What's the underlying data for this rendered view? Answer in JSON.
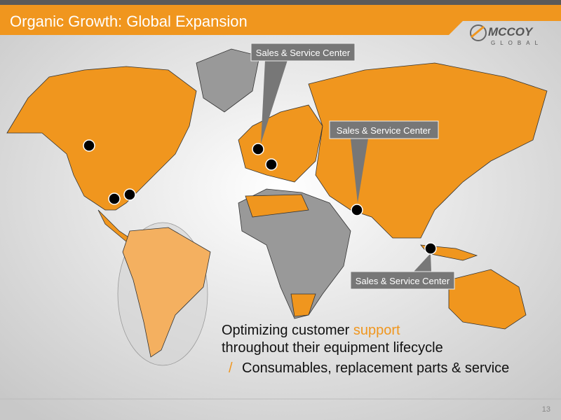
{
  "header": {
    "title": "Organic Growth: Global Expansion",
    "logo": {
      "name": "MCCOY",
      "subtitle": "GLOBAL"
    }
  },
  "callouts": [
    {
      "label": "Sales & Service Center"
    },
    {
      "label": "Sales & Service Center"
    },
    {
      "label": "Sales & Service Center"
    }
  ],
  "body": {
    "line1": {
      "text": "Optimizing customer",
      "highlight": "support"
    },
    "line2": "throughout their equipment lifecycle",
    "bullet": {
      "marker": "/",
      "text": "Consumables, replacement parts & service"
    }
  },
  "footer": {
    "page": "13"
  }
}
